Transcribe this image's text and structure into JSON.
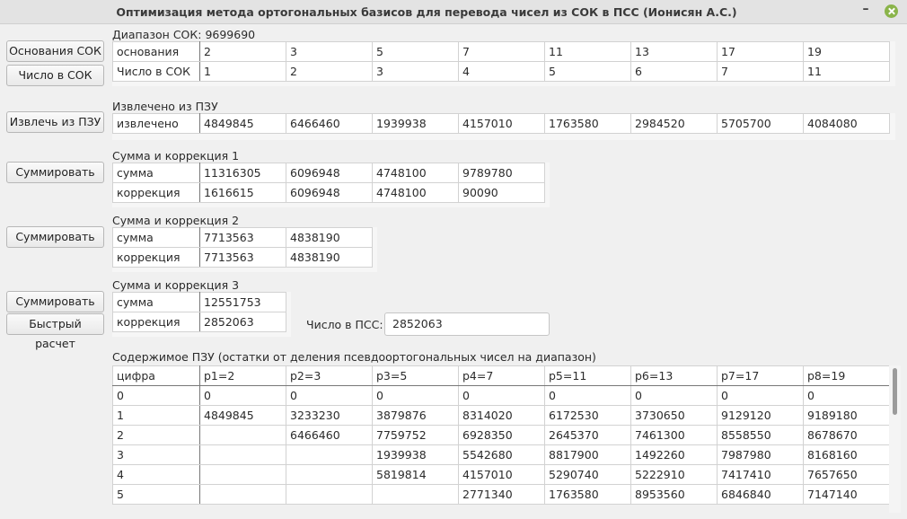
{
  "window": {
    "title": "Оптимизация метода ортогональных базисов для перевода чисел из СОК в ПСС (Ионисян А.С.)"
  },
  "buttons": {
    "bases": "Основания СОК",
    "number_rns": "Число в СОК",
    "extract": "Извлечь из ПЗУ",
    "sum1": "Суммировать",
    "sum2": "Суммировать",
    "sum3": "Суммировать",
    "fast": "Быстрый расчет"
  },
  "range": {
    "label": "Диапазон СОК: 9699690"
  },
  "rns_table": {
    "rows": [
      {
        "header": "основания",
        "cells": [
          "2",
          "3",
          "5",
          "7",
          "11",
          "13",
          "17",
          "19"
        ]
      },
      {
        "header": "Число в СОК",
        "cells": [
          "1",
          "2",
          "3",
          "4",
          "5",
          "6",
          "7",
          "11"
        ]
      }
    ]
  },
  "extracted": {
    "title": "Извлечено из ПЗУ",
    "header": "извлечено",
    "cells": [
      "4849845",
      "6466460",
      "1939938",
      "4157010",
      "1763580",
      "2984520",
      "5705700",
      "4084080"
    ]
  },
  "sum1": {
    "title": "Сумма и коррекция 1",
    "rows": [
      {
        "header": "сумма",
        "cells": [
          "11316305",
          "6096948",
          "4748100",
          "9789780"
        ]
      },
      {
        "header": "коррекция",
        "cells": [
          "1616615",
          "6096948",
          "4748100",
          "90090"
        ]
      }
    ]
  },
  "sum2": {
    "title": "Сумма и коррекция 2",
    "rows": [
      {
        "header": "сумма",
        "cells": [
          "7713563",
          "4838190"
        ]
      },
      {
        "header": "коррекция",
        "cells": [
          "7713563",
          "4838190"
        ]
      }
    ]
  },
  "sum3": {
    "title": "Сумма и коррекция 3",
    "rows": [
      {
        "header": "сумма",
        "cells": [
          "12551753"
        ]
      },
      {
        "header": "коррекция",
        "cells": [
          "2852063"
        ]
      }
    ]
  },
  "result": {
    "label": "Число в ПСС:",
    "value": "2852063"
  },
  "rom": {
    "title": "Содержимое ПЗУ (остатки от деления псевдоортогональных чисел на диапазон)",
    "columns": [
      "цифра",
      "p1=2",
      "p2=3",
      "p3=5",
      "p4=7",
      "p5=11",
      "p6=13",
      "p7=17",
      "p8=19"
    ],
    "rows": [
      [
        "0",
        "0",
        "0",
        "0",
        "0",
        "0",
        "0",
        "0",
        "0"
      ],
      [
        "1",
        "4849845",
        "3233230",
        "3879876",
        "8314020",
        "6172530",
        "3730650",
        "9129120",
        "9189180"
      ],
      [
        "2",
        "",
        "6466460",
        "7759752",
        "6928350",
        "2645370",
        "7461300",
        "8558550",
        "8678670"
      ],
      [
        "3",
        "",
        "",
        "1939938",
        "5542680",
        "8817900",
        "1492260",
        "7987980",
        "8168160"
      ],
      [
        "4",
        "",
        "",
        "5819814",
        "4157010",
        "5290740",
        "5222910",
        "7417410",
        "7657650"
      ],
      [
        "5",
        "",
        "",
        "",
        "2771340",
        "1763580",
        "8953560",
        "6846840",
        "7147140"
      ]
    ]
  }
}
